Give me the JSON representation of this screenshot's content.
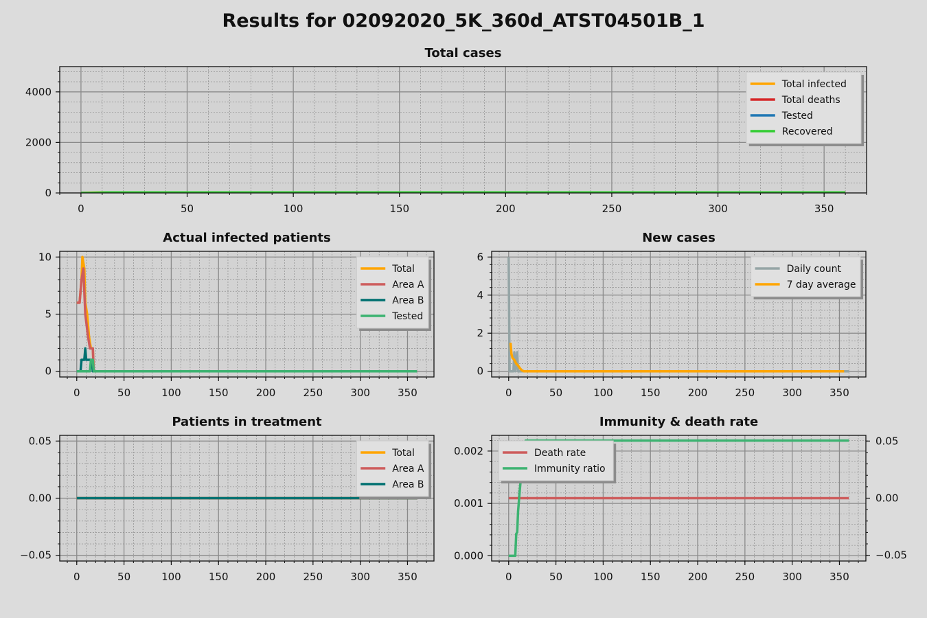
{
  "title": "Results for 02092020_5K_360d_ATST04501B_1",
  "chart_data": [
    {
      "id": "total",
      "type": "line",
      "title": "Total cases",
      "xlim": [
        -10,
        370
      ],
      "ylim": [
        0,
        5000
      ],
      "xticks": [
        0,
        50,
        100,
        150,
        200,
        250,
        300,
        350
      ],
      "yticks": [
        0,
        2000,
        4000
      ],
      "ytick_labels": [
        "0",
        "2000",
        "4000"
      ],
      "legend": "top-right",
      "series": [
        {
          "name": "Total infected",
          "color": "#ffa500",
          "points": [
            [
              0,
              6
            ],
            [
              12,
              20
            ],
            [
              360,
              20
            ]
          ]
        },
        {
          "name": "Total deaths",
          "color": "#d62728",
          "points": [
            [
              0,
              0
            ],
            [
              360,
              0
            ]
          ]
        },
        {
          "name": "Tested",
          "color": "#1f77b4",
          "points": [
            [
              0,
              0
            ],
            [
              360,
              2
            ]
          ]
        },
        {
          "name": "Recovered",
          "color": "#32cd32",
          "points": [
            [
              0,
              0
            ],
            [
              12,
              18
            ],
            [
              360,
              20
            ]
          ]
        }
      ]
    },
    {
      "id": "actual",
      "type": "line",
      "title": "Actual infected patients",
      "xlim": [
        -18,
        378
      ],
      "ylim": [
        -0.5,
        10.5
      ],
      "xticks": [
        0,
        50,
        100,
        150,
        200,
        250,
        300,
        350
      ],
      "yticks": [
        0,
        5,
        10
      ],
      "ytick_labels": [
        "0",
        "5",
        "10"
      ],
      "legend": "top-right",
      "series": [
        {
          "name": "Total",
          "color": "#ffa500",
          "points": [
            [
              0,
              6
            ],
            [
              3,
              6
            ],
            [
              5,
              8
            ],
            [
              6,
              10
            ],
            [
              8,
              9
            ],
            [
              9,
              6
            ],
            [
              11,
              5
            ],
            [
              13,
              3
            ],
            [
              15,
              2
            ],
            [
              17,
              2
            ],
            [
              18,
              0
            ],
            [
              360,
              0
            ]
          ]
        },
        {
          "name": "Area A",
          "color": "#cd5c5c",
          "points": [
            [
              0,
              6
            ],
            [
              3,
              6
            ],
            [
              5,
              8
            ],
            [
              7,
              9
            ],
            [
              9,
              5
            ],
            [
              12,
              3
            ],
            [
              14,
              2
            ],
            [
              17,
              2
            ],
            [
              18,
              0
            ],
            [
              360,
              0
            ]
          ]
        },
        {
          "name": "Area B",
          "color": "#007070",
          "points": [
            [
              0,
              0
            ],
            [
              4,
              0
            ],
            [
              5,
              1
            ],
            [
              8,
              1
            ],
            [
              9,
              2
            ],
            [
              10,
              1
            ],
            [
              16,
              1
            ],
            [
              17,
              0
            ],
            [
              360,
              0
            ]
          ]
        },
        {
          "name": "Tested",
          "color": "#3cb371",
          "points": [
            [
              0,
              0
            ],
            [
              14,
              0
            ],
            [
              15,
              1
            ],
            [
              17,
              1
            ],
            [
              18,
              0
            ],
            [
              360,
              0
            ]
          ]
        }
      ]
    },
    {
      "id": "newcases",
      "type": "line",
      "title": "New cases",
      "xlim": [
        -18,
        378
      ],
      "ylim": [
        -0.3,
        6.3
      ],
      "xticks": [
        0,
        50,
        100,
        150,
        200,
        250,
        300,
        350
      ],
      "yticks": [
        0,
        2,
        4,
        6
      ],
      "ytick_labels": [
        "0",
        "2",
        "4",
        "6"
      ],
      "legend": "top-right",
      "series": [
        {
          "name": "Daily count",
          "color": "#95a5a6",
          "points": [
            [
              0,
              6
            ],
            [
              1,
              0
            ],
            [
              5,
              0
            ],
            [
              6,
              1
            ],
            [
              7,
              0
            ],
            [
              9,
              1
            ],
            [
              10,
              0
            ],
            [
              360,
              0
            ]
          ]
        },
        {
          "name": "7 day average",
          "color": "#ffa500",
          "points": [
            [
              2,
              1.5
            ],
            [
              3,
              0.9
            ],
            [
              4,
              0.7
            ],
            [
              6,
              0.6
            ],
            [
              8,
              0.4
            ],
            [
              10,
              0.3
            ],
            [
              12,
              0.15
            ],
            [
              14,
              0.05
            ],
            [
              16,
              0
            ],
            [
              355,
              0
            ]
          ]
        }
      ]
    },
    {
      "id": "treatment",
      "type": "line",
      "title": "Patients in treatment",
      "xlim": [
        -18,
        378
      ],
      "ylim": [
        -0.055,
        0.055
      ],
      "xticks": [
        0,
        50,
        100,
        150,
        200,
        250,
        300,
        350
      ],
      "yticks": [
        -0.05,
        0.0,
        0.05
      ],
      "ytick_labels": [
        "−0.05",
        "0.00",
        "0.05"
      ],
      "legend": "top-right",
      "series": [
        {
          "name": "Total",
          "color": "#ffa500",
          "points": [
            [
              0,
              0
            ],
            [
              360,
              0
            ]
          ]
        },
        {
          "name": "Area A",
          "color": "#cd5c5c",
          "points": [
            [
              0,
              0
            ],
            [
              360,
              0
            ]
          ]
        },
        {
          "name": "Area B",
          "color": "#007070",
          "points": [
            [
              0,
              0
            ],
            [
              360,
              0
            ]
          ]
        }
      ]
    },
    {
      "id": "immunity",
      "type": "line",
      "title": "Immunity & death rate",
      "xlim": [
        -18,
        378
      ],
      "ylim": [
        -0.0001,
        0.0023
      ],
      "ylim_right": [
        -0.055,
        0.055
      ],
      "xticks": [
        0,
        50,
        100,
        150,
        200,
        250,
        300,
        350
      ],
      "yticks": [
        0,
        0.001,
        0.002
      ],
      "ytick_labels": [
        "0.000",
        "0.001",
        "0.002"
      ],
      "yticks_right": [
        -0.05,
        0.0,
        0.05
      ],
      "ytick_labels_right": [
        "−0.05",
        "0.00",
        "0.05"
      ],
      "legend": "top-left",
      "series": [
        {
          "name": "Death rate",
          "color": "#cd5c5c",
          "axis": "right",
          "points": [
            [
              0,
              0
            ],
            [
              360,
              0
            ]
          ]
        },
        {
          "name": "Immunity ratio",
          "color": "#3cb371",
          "axis": "left",
          "points": [
            [
              0,
              0
            ],
            [
              7,
              0
            ],
            [
              8,
              0.00042
            ],
            [
              9,
              0.00045
            ],
            [
              10,
              0.00085
            ],
            [
              11,
              0.00108
            ],
            [
              12,
              0.0013
            ],
            [
              13,
              0.0015
            ],
            [
              14,
              0.0016
            ],
            [
              18,
              0.0022
            ],
            [
              360,
              0.0022
            ]
          ]
        }
      ]
    }
  ]
}
